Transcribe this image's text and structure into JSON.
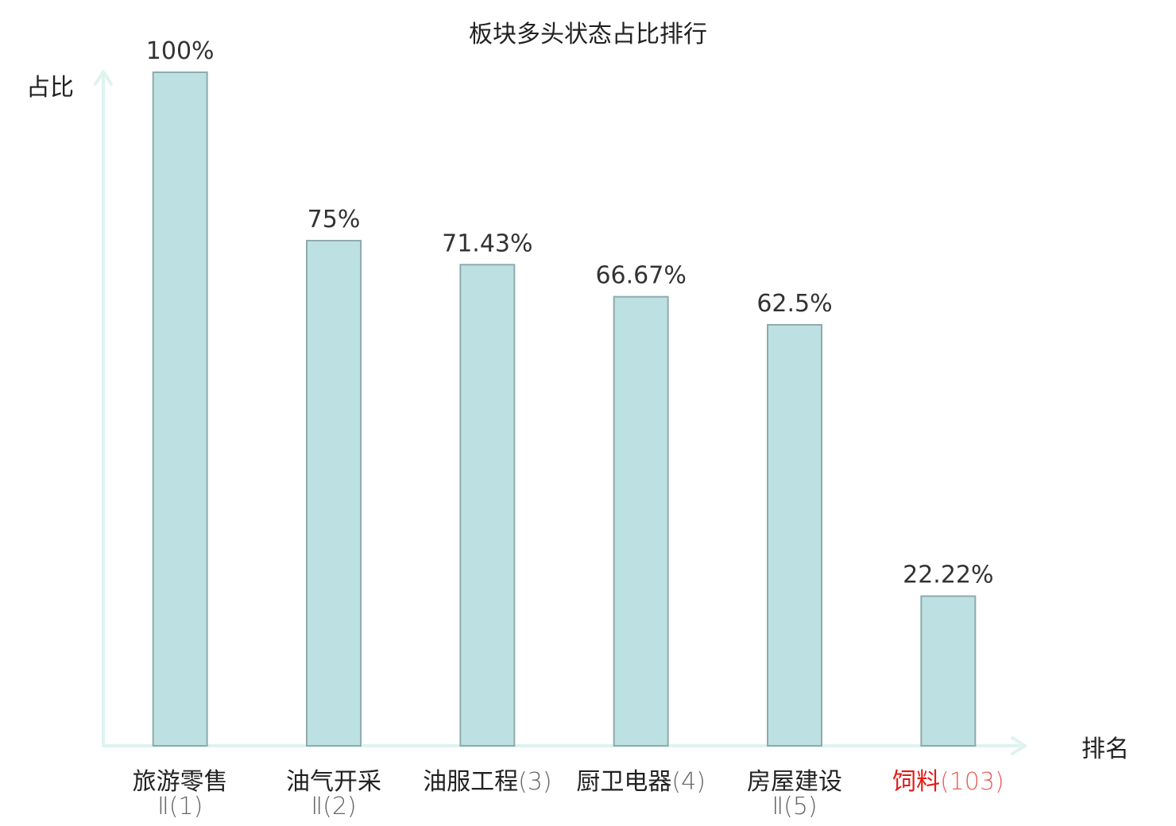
{
  "chart_data": {
    "type": "bar",
    "title": "板块多头状态占比排行",
    "ylabel": "占比",
    "xlabel": "排名",
    "ylim": [
      0,
      100
    ],
    "grid": false,
    "categories": [
      {
        "name": "旅游零售",
        "suffix": "Ⅱ(1)",
        "highlight": false
      },
      {
        "name": "油气开采",
        "suffix": "Ⅱ(2)",
        "highlight": false
      },
      {
        "name": "油服工程",
        "suffix": "(3)",
        "highlight": false
      },
      {
        "name": "厨卫电器",
        "suffix": "(4)",
        "highlight": false
      },
      {
        "name": "房屋建设",
        "suffix": "Ⅱ(5)",
        "highlight": false
      },
      {
        "name": "饲料",
        "suffix": "(103)",
        "highlight": true
      }
    ],
    "values": [
      100,
      75,
      71.43,
      66.67,
      62.5,
      22.22
    ],
    "data_labels": [
      "100%",
      "75%",
      "71.43%",
      "66.67%",
      "62.5%",
      "22.22%"
    ],
    "colors": {
      "bar_fill": "#bde0e3",
      "bar_stroke": "#8fabac",
      "axis": "#dff3ef",
      "label": "#222222",
      "suffix": "#666666",
      "highlight": "#e31a16",
      "highlight_suffix": "#e8605a"
    }
  }
}
